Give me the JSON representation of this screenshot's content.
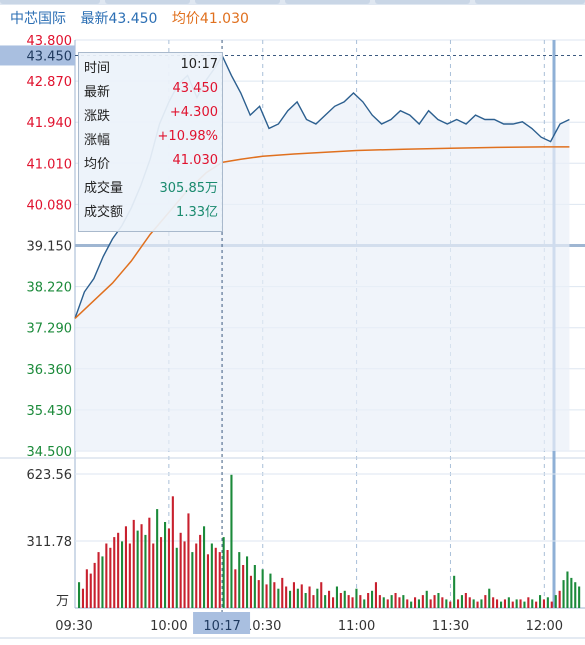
{
  "header": {
    "stock_name": "中芯国际",
    "latest_label": "最新",
    "latest_value": "43.450",
    "avg_label": "均价",
    "avg_value": "41.030"
  },
  "crosshair": {
    "price_label": "43.450",
    "time_label": "10:17"
  },
  "tooltip": {
    "rows": [
      {
        "label": "时间",
        "value": "10:17",
        "color": "#222222"
      },
      {
        "label": "最新",
        "value": "43.450",
        "color": "#e0122e"
      },
      {
        "label": "涨跌",
        "value": "+4.300",
        "color": "#e0122e"
      },
      {
        "label": "涨幅",
        "value": "+10.98%",
        "color": "#e0122e"
      },
      {
        "label": "均价",
        "value": "41.030",
        "color": "#e0122e"
      },
      {
        "label": "成交量",
        "value": "305.85万",
        "color": "#1a8a6e"
      },
      {
        "label": "成交额",
        "value": "1.33亿",
        "color": "#1a8a6e"
      }
    ]
  },
  "colors": {
    "price_line": "#2c5f8f",
    "avg_line": "#e0701e",
    "up": "#c8202e",
    "down": "#1b8a3a",
    "grid": "#a9bfd8",
    "red_text": "#e0122e",
    "green_text": "#1b8a3a"
  },
  "chart_data": {
    "type": "line",
    "title": "",
    "reference_price": 39.15,
    "x_ticks": [
      "09:30",
      "10:00",
      "10:30",
      "11:00",
      "11:30",
      "12:00"
    ],
    "y_ticks": [
      "43.800",
      "42.870",
      "41.940",
      "41.010",
      "40.080",
      "39.150",
      "38.220",
      "37.290",
      "36.360",
      "35.430",
      "34.500"
    ],
    "ylim": [
      34.5,
      43.8
    ],
    "volume_ticks": [
      "623.56",
      "311.78"
    ],
    "volume_unit": "万",
    "volume_ylim": [
      0,
      623.56
    ],
    "series": [
      {
        "name": "最新",
        "x": [
          "09:30",
          "09:33",
          "09:36",
          "09:39",
          "09:42",
          "09:45",
          "09:48",
          "09:51",
          "09:54",
          "09:57",
          "10:00",
          "10:03",
          "10:06",
          "10:09",
          "10:12",
          "10:15",
          "10:17",
          "10:20",
          "10:23",
          "10:26",
          "10:29",
          "10:32",
          "10:35",
          "10:38",
          "10:41",
          "10:44",
          "10:47",
          "10:50",
          "10:53",
          "10:56",
          "10:59",
          "11:02",
          "11:05",
          "11:08",
          "11:11",
          "11:14",
          "11:17",
          "11:20",
          "11:23",
          "11:26",
          "11:29",
          "11:32",
          "11:35",
          "11:38",
          "11:41",
          "11:44",
          "11:47",
          "11:50",
          "11:53",
          "11:56",
          "11:59",
          "12:02",
          "12:05",
          "12:08"
        ],
        "values": [
          37.5,
          38.1,
          38.4,
          38.9,
          39.3,
          39.6,
          40.0,
          40.5,
          41.1,
          41.9,
          42.4,
          42.8,
          43.0,
          42.5,
          42.9,
          43.2,
          43.45,
          43.0,
          42.6,
          42.1,
          42.3,
          41.8,
          41.9,
          42.2,
          42.4,
          42.0,
          41.9,
          42.1,
          42.3,
          42.4,
          42.6,
          42.4,
          42.1,
          41.9,
          42.0,
          42.2,
          42.1,
          41.9,
          42.2,
          42.0,
          41.9,
          42.0,
          41.9,
          42.1,
          42.0,
          42.0,
          41.9,
          41.9,
          41.95,
          41.8,
          41.6,
          41.5,
          41.9,
          42.0
        ]
      },
      {
        "name": "均价",
        "x": [
          "09:30",
          "09:36",
          "09:42",
          "09:48",
          "09:54",
          "10:00",
          "10:06",
          "10:12",
          "10:17",
          "10:23",
          "10:30",
          "10:40",
          "10:50",
          "11:00",
          "11:15",
          "11:30",
          "11:45",
          "12:00",
          "12:08"
        ],
        "values": [
          37.5,
          37.9,
          38.3,
          38.8,
          39.4,
          39.9,
          40.4,
          40.8,
          41.03,
          41.1,
          41.17,
          41.22,
          41.26,
          41.3,
          41.33,
          41.35,
          41.37,
          41.38,
          41.38
        ]
      }
    ],
    "volume_bars": [
      120,
      90,
      180,
      160,
      210,
      260,
      240,
      300,
      280,
      330,
      350,
      310,
      380,
      300,
      410,
      360,
      390,
      340,
      420,
      300,
      460,
      330,
      400,
      370,
      520,
      280,
      350,
      310,
      440,
      260,
      300,
      340,
      380,
      250,
      300,
      280,
      260,
      330,
      270,
      620,
      180,
      260,
      200,
      240,
      150,
      200,
      130,
      180,
      110,
      160,
      120,
      90,
      140,
      100,
      80,
      120,
      90,
      110,
      70,
      100,
      60,
      90,
      120,
      60,
      80,
      50,
      100,
      70,
      80,
      60,
      50,
      90,
      60,
      40,
      70,
      80,
      120,
      60,
      50,
      40,
      60,
      70,
      50,
      60,
      40,
      30,
      50,
      40,
      60,
      80,
      40,
      60,
      70,
      50,
      40,
      30,
      150,
      40,
      60,
      70,
      50,
      40,
      30,
      40,
      60,
      90,
      50,
      40,
      30,
      40,
      50,
      30,
      40,
      40,
      30,
      50,
      40,
      30,
      60,
      40,
      50,
      30,
      60,
      80,
      130,
      170,
      140,
      120,
      100
    ],
    "volume_colors": [
      "d",
      "u",
      "u",
      "u",
      "u",
      "u",
      "d",
      "u",
      "u",
      "u",
      "u",
      "d",
      "u",
      "u",
      "u",
      "d",
      "u",
      "d",
      "u",
      "u",
      "d",
      "u",
      "d",
      "u",
      "u",
      "d",
      "u",
      "u",
      "u",
      "d",
      "u",
      "u",
      "d",
      "u",
      "d",
      "u",
      "u",
      "d",
      "u",
      "d",
      "u",
      "d",
      "u",
      "d",
      "u",
      "d",
      "u",
      "d",
      "u",
      "d",
      "u",
      "d",
      "u",
      "u",
      "d",
      "u",
      "d",
      "u",
      "d",
      "u",
      "u",
      "d",
      "u",
      "d",
      "u",
      "u",
      "d",
      "u",
      "d",
      "u",
      "u",
      "d",
      "u",
      "d",
      "u",
      "d",
      "u",
      "u",
      "d",
      "u",
      "d",
      "u",
      "u",
      "d",
      "u",
      "d",
      "u",
      "d",
      "u",
      "d",
      "u",
      "u",
      "d",
      "u",
      "d",
      "u",
      "d",
      "u",
      "d",
      "u",
      "u",
      "d",
      "u",
      "d",
      "u",
      "d",
      "u",
      "u",
      "d",
      "u",
      "d",
      "u",
      "d",
      "u",
      "d",
      "u",
      "d",
      "u",
      "d",
      "u",
      "d",
      "u",
      "d",
      "u",
      "d"
    ]
  }
}
